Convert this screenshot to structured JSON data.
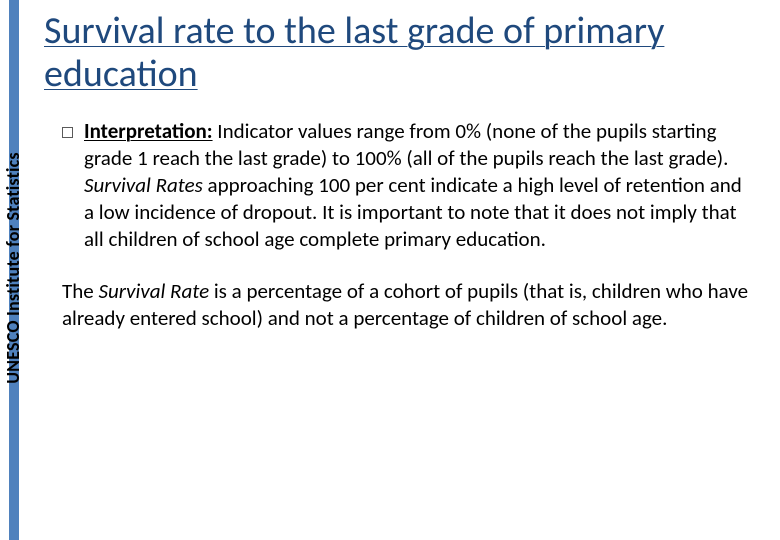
{
  "colors": {
    "accent_bar": "#4f81bd",
    "title_color": "#1f497d",
    "text_color": "#000000",
    "background": "#ffffff",
    "bullet_border": "#5a5a5a"
  },
  "typography": {
    "title_fontsize_pt": 28,
    "body_fontsize_pt": 16,
    "side_label_fontsize_pt": 13,
    "font_family": "Calibri"
  },
  "side_label": "UNESCO Institute for Statistics",
  "title": "Survival rate to the last grade of primary education",
  "bullet": {
    "lead_label": "Interpretation:",
    "lead_rest": " Indicator values range from 0% (none of the pupils starting grade 1 reach the last grade) to 100% (all of the pupils reach the last grade). ",
    "survival_rates_ital": "Survival Rates",
    "after_ital": " approaching 100 per cent indicate a high level of retention and a low incidence of dropout. It is important to note that it does not imply that all children of school age complete primary education."
  },
  "para2": {
    "pre": "The ",
    "ital": "Survival Rate",
    "post": " is a percentage of a cohort of pupils (that is, children who have already entered school) and not a percentage of children of school age."
  }
}
